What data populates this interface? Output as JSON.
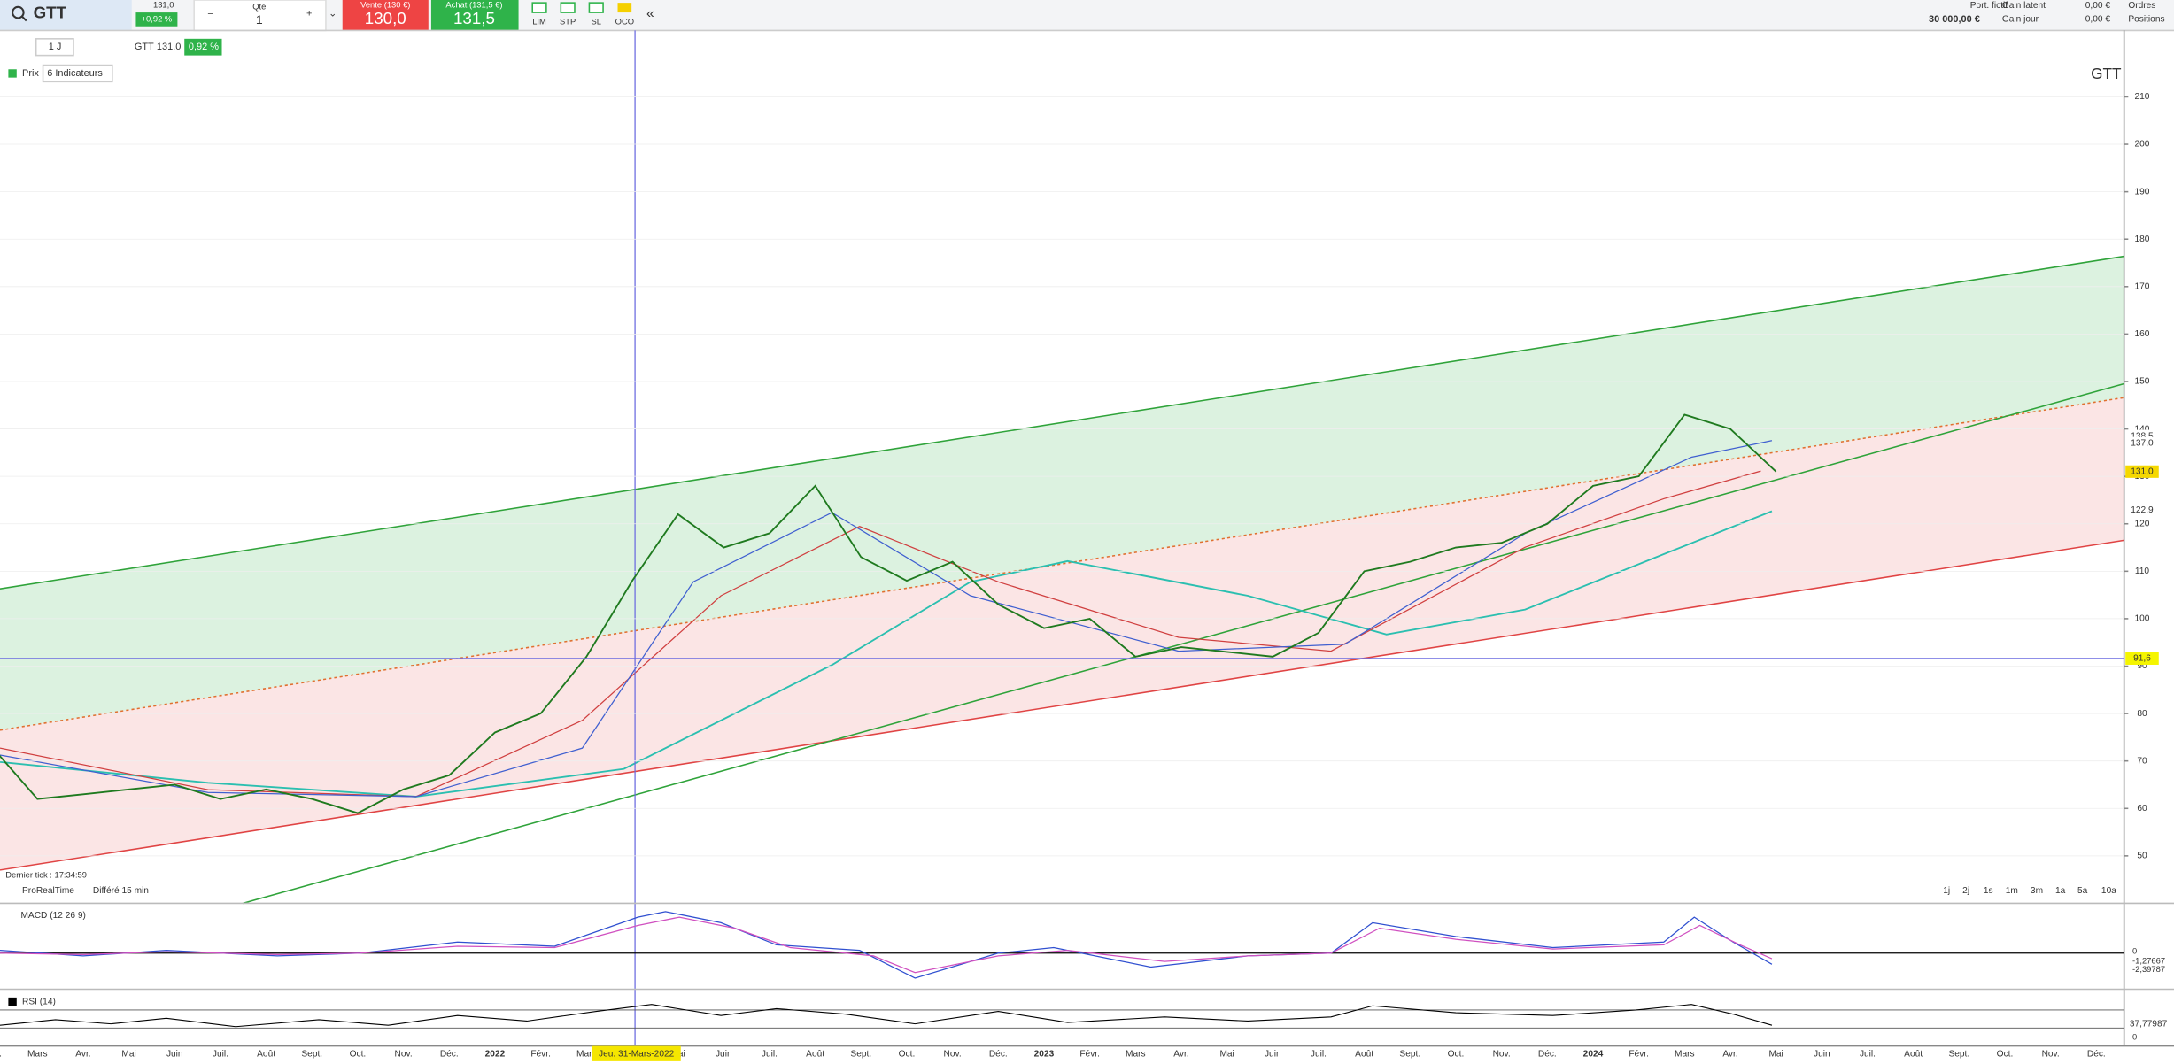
{
  "toolbar": {
    "symbol": "GTT",
    "last": "131,0",
    "change": "+0,92 %",
    "qty_label": "Qté",
    "qty": "1",
    "sell_label": "Vente (130 €)",
    "sell": "130,0",
    "buy_label": "Achat (131,5 €)",
    "buy": "131,5",
    "order_types": [
      "LIM",
      "STP",
      "SL",
      "OCO"
    ],
    "portfolio_label": "Port. fictif",
    "portfolio": "30 000,00 €",
    "gain_latent_label": "Gain latent",
    "gain_latent": "0,00 €",
    "gain_jour_label": "Gain jour",
    "gain_jour": "0,00 €",
    "links": [
      "Ordres",
      "Positions"
    ]
  },
  "chart_header": {
    "period": "1 J",
    "symbol": "GTT",
    "last": "131,0",
    "change": "0,92 %",
    "price_label": "Prix",
    "indicators": "6 Indicateurs",
    "watermark": "GTT"
  },
  "chart_data": {
    "type": "line",
    "color": "#1f7a1f",
    "categories": [
      "Févr.",
      "Mars",
      "Avr.",
      "Mai",
      "Juin",
      "Juil.",
      "Août",
      "Sept.",
      "Oct.",
      "Nov.",
      "Déc.",
      "2022",
      "Févr.",
      "Mars",
      null,
      "Mai",
      "Juin",
      "Juil.",
      "Août",
      "Sept.",
      "Oct.",
      "Nov.",
      "Déc.",
      "2023",
      "Févr.",
      "Mars",
      "Avr.",
      "Mai",
      "Juin",
      "Juil.",
      "Août",
      "Sept.",
      "Oct.",
      "Nov.",
      "Déc.",
      "2024",
      "Févr.",
      "Mars",
      "Avr.",
      "Mai",
      "Juin",
      "Juil.",
      "Août",
      "Sept.",
      "Oct.",
      "Nov.",
      "Déc."
    ],
    "values": [
      73,
      62,
      63,
      64,
      65,
      62,
      64,
      62,
      59,
      64,
      67,
      76,
      80,
      92,
      108,
      122,
      115,
      118,
      128,
      113,
      108,
      112,
      103,
      98,
      100,
      92,
      94,
      93,
      92,
      97,
      110,
      112,
      115,
      116,
      120,
      128,
      130,
      143,
      140,
      131,
      null,
      null,
      null,
      null,
      null,
      null,
      null
    ],
    "ylim": [
      40,
      224
    ],
    "yticks": [
      50,
      60,
      70,
      80,
      90,
      100,
      110,
      120,
      130,
      140,
      150,
      160,
      170,
      180,
      190,
      200,
      210
    ],
    "grid": true,
    "markers": [
      {
        "value": 131.0,
        "label": "131,0",
        "color": "#f5d800"
      },
      {
        "value": 91.6,
        "label": "91,6",
        "color": "#f5f500"
      },
      {
        "value": 138.5,
        "label": "138,5",
        "color": "#ffffff"
      },
      {
        "value": 137.0,
        "label": "137,0",
        "color": "#ffffff"
      },
      {
        "value": 122.9,
        "label": "122,9",
        "color": "#ffffff"
      }
    ]
  },
  "footer": {
    "last_tick": "Dernier tick : 17:34:59",
    "provider": "ProRealTime",
    "delay": "Différé 15 min",
    "periods": [
      "1j",
      "2j",
      "1s",
      "1m",
      "3m",
      "1a",
      "5a",
      "10a"
    ],
    "crosshair_date": "Jeu. 31-Mars-2022"
  },
  "macd": {
    "label": "MACD (12 26 9)",
    "zero": "0",
    "value": "-1,27667",
    "signal": "-2,39787"
  },
  "rsi": {
    "label": "RSI (14)",
    "value": "37,77987",
    "zero": "0"
  }
}
